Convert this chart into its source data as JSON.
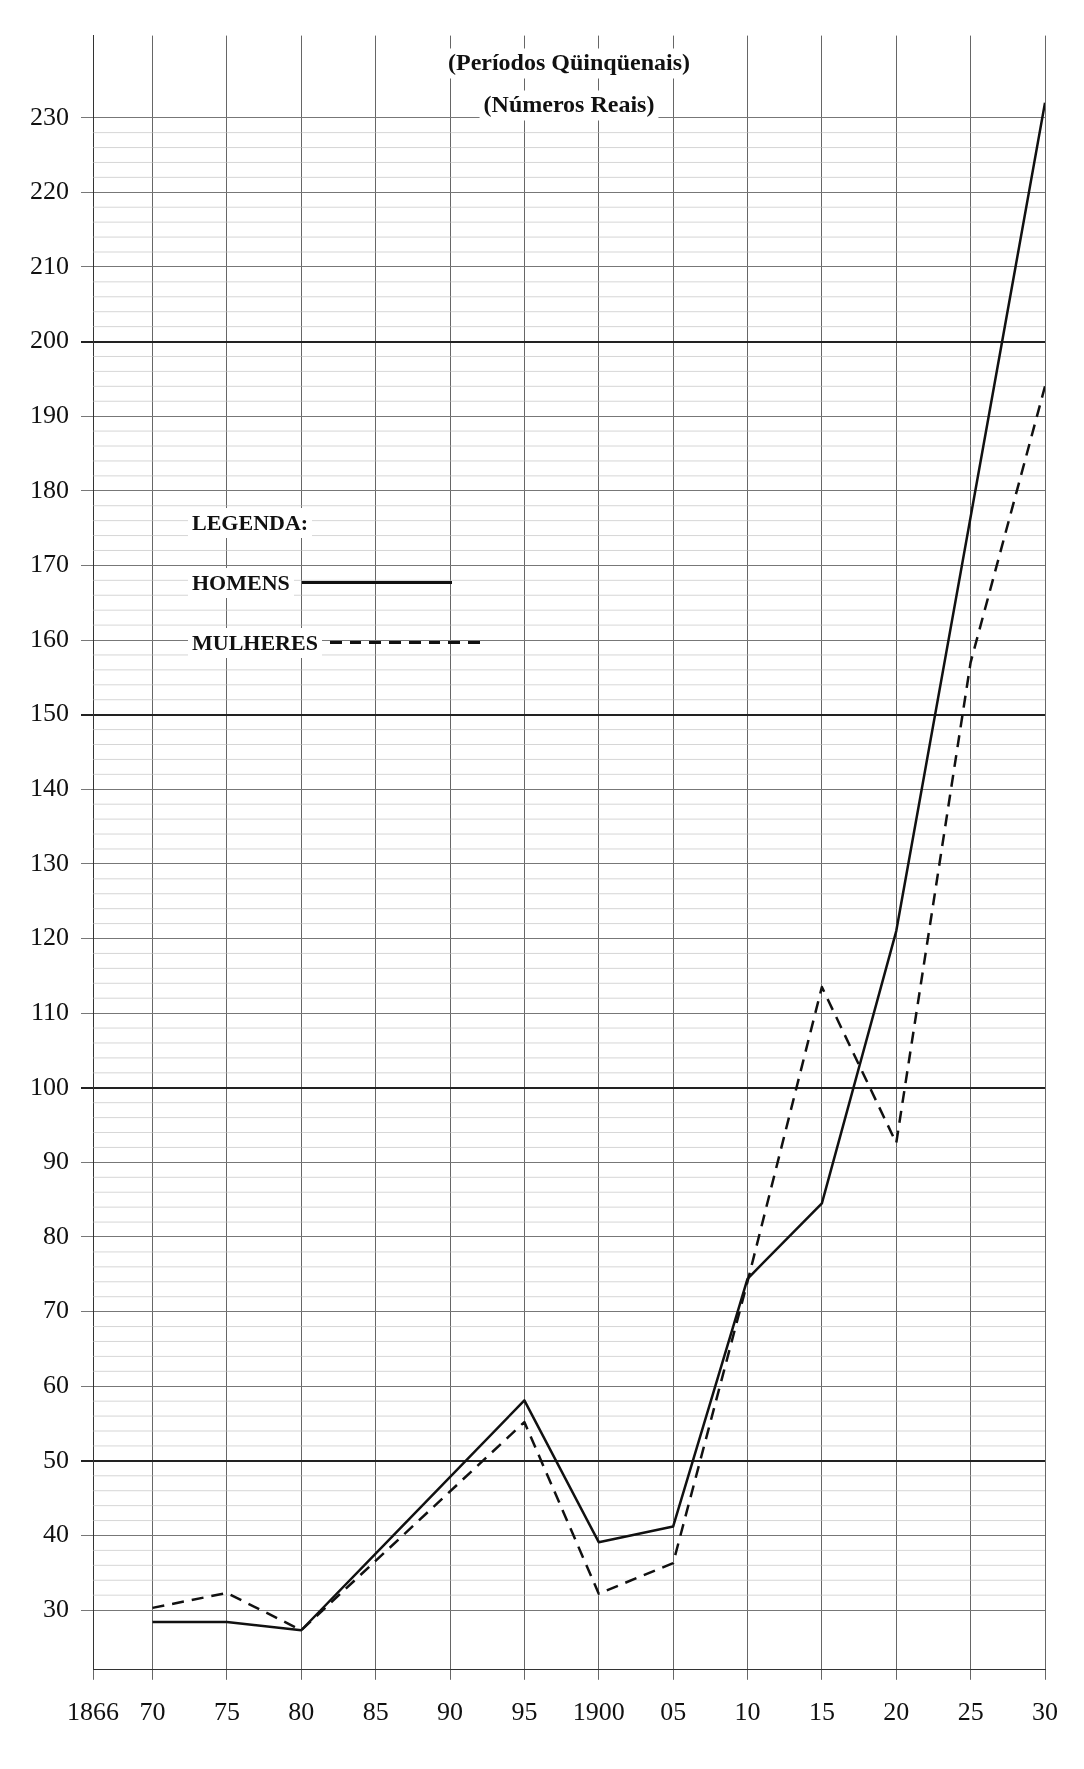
{
  "chart_data": {
    "type": "line",
    "title": "(Períodos Qüinqüenais)",
    "subtitle": "(Números Reais)",
    "legend_title": "LEGENDA:",
    "legend": "left",
    "grid": true,
    "xlim": [
      1866,
      1930
    ],
    "xticks": [
      1866,
      {
        "value": 1870,
        "label": "70"
      },
      {
        "value": 1875,
        "label": "75"
      },
      {
        "value": 1880,
        "label": "80"
      },
      {
        "value": 1885,
        "label": "85"
      },
      {
        "value": 1890,
        "label": "90"
      },
      {
        "value": 1895,
        "label": "95"
      },
      1900,
      {
        "value": 1905,
        "label": "05"
      },
      {
        "value": 1910,
        "label": "10"
      },
      {
        "value": 1915,
        "label": "15"
      },
      {
        "value": 1920,
        "label": "20"
      },
      {
        "value": 1925,
        "label": "25"
      },
      {
        "value": 1930,
        "label": "30"
      }
    ],
    "ylim": [
      22,
      241
    ],
    "yticks": [
      30,
      40,
      50,
      60,
      70,
      80,
      90,
      100,
      110,
      120,
      130,
      140,
      150,
      160,
      170,
      180,
      190,
      200,
      210,
      220,
      230
    ],
    "series": [
      {
        "name": "HOMENS",
        "color": "#111111",
        "line_style": "solid",
        "x": [
          1870,
          1875,
          1880,
          1895,
          1900,
          1905,
          1910,
          1915,
          1920,
          1930
        ],
        "values": [
          28.4,
          28.4,
          27.3,
          58.1,
          39.1,
          41.2,
          74.4,
          84.5,
          121,
          232
        ]
      },
      {
        "name": "MULHERES",
        "color": "#111111",
        "line_style": "dashed",
        "x": [
          1870,
          1875,
          1880,
          1895,
          1900,
          1905,
          1910,
          1915,
          1920,
          1925,
          1930
        ],
        "values": [
          30.3,
          32.3,
          27.3,
          55.2,
          32.2,
          36.3,
          74,
          113.5,
          92.6,
          157,
          194
        ]
      }
    ]
  }
}
